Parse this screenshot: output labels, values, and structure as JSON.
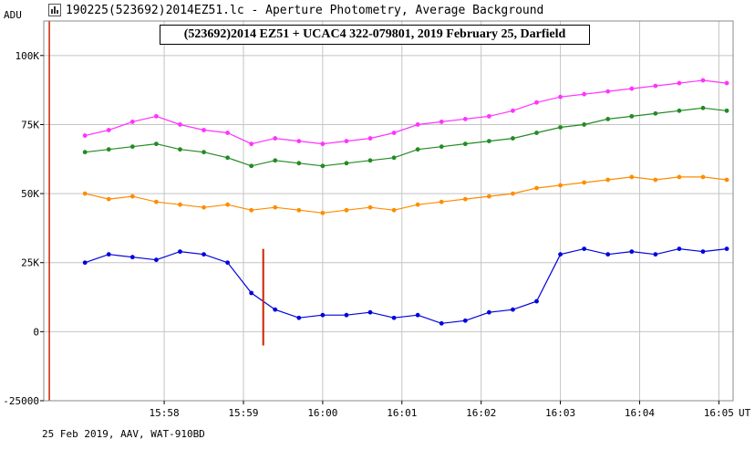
{
  "window": {
    "title": "190225(523692)2014EZ51.lc - Aperture Photometry, Average Background"
  },
  "footer": {
    "caption": "25 Feb 2019, AAV, WAT-910BD"
  },
  "colors": {
    "target": "#0000dd",
    "comparison": "#ff8c00",
    "tracking": "#228b22",
    "reference": "#ff33ff",
    "event_marker": "#cc2200",
    "grid": "#c4c4c4"
  },
  "chart_data": {
    "type": "line",
    "title": "(523692)2014 EZ51 + UCAC4 322-079801, 2019 February 25, Darfield",
    "ylabel": "ADU",
    "xlabel_unit": "UT",
    "ylim": [
      -25000,
      112500
    ],
    "yticks": [
      {
        "value": -25000,
        "label": "-25000"
      },
      {
        "value": 0,
        "label": "0"
      },
      {
        "value": 25000,
        "label": "25K"
      },
      {
        "value": 50000,
        "label": "50K"
      },
      {
        "value": 75000,
        "label": "75K"
      },
      {
        "value": 100000,
        "label": "100K"
      }
    ],
    "xlim_minutes_after_1557": [
      -0.52,
      8.18
    ],
    "xticks": [
      "15:58",
      "15:59",
      "16:00",
      "16:01",
      "16:02",
      "16:03",
      "16:04",
      "16:05"
    ],
    "grid": true,
    "series": [
      {
        "key": "target",
        "x": [
          0.0,
          0.3,
          0.6,
          0.9,
          1.2,
          1.5,
          1.8,
          2.1,
          2.4,
          2.7,
          3.0,
          3.3,
          3.6,
          3.9,
          4.2,
          4.5,
          4.8,
          5.1,
          5.4,
          5.7,
          6.0,
          6.3,
          6.6,
          6.9,
          7.2,
          7.5,
          7.8,
          8.1
        ],
        "y": [
          25000,
          28000,
          27000,
          26000,
          29000,
          28000,
          25000,
          14000,
          8000,
          5000,
          6000,
          6000,
          7000,
          5000,
          6000,
          3000,
          4000,
          7000,
          8000,
          11000,
          28000,
          30000,
          28000,
          29000,
          28000,
          30000,
          29000,
          30000
        ]
      },
      {
        "key": "comparison",
        "x": [
          0.0,
          0.3,
          0.6,
          0.9,
          1.2,
          1.5,
          1.8,
          2.1,
          2.4,
          2.7,
          3.0,
          3.3,
          3.6,
          3.9,
          4.2,
          4.5,
          4.8,
          5.1,
          5.4,
          5.7,
          6.0,
          6.3,
          6.6,
          6.9,
          7.2,
          7.5,
          7.8,
          8.1
        ],
        "y": [
          50000,
          48000,
          49000,
          47000,
          46000,
          45000,
          46000,
          44000,
          45000,
          44000,
          43000,
          44000,
          45000,
          44000,
          46000,
          47000,
          48000,
          49000,
          50000,
          52000,
          53000,
          54000,
          55000,
          56000,
          55000,
          56000,
          56000,
          55000
        ]
      },
      {
        "key": "tracking",
        "x": [
          0.0,
          0.3,
          0.6,
          0.9,
          1.2,
          1.5,
          1.8,
          2.1,
          2.4,
          2.7,
          3.0,
          3.3,
          3.6,
          3.9,
          4.2,
          4.5,
          4.8,
          5.1,
          5.4,
          5.7,
          6.0,
          6.3,
          6.6,
          6.9,
          7.2,
          7.5,
          7.8,
          8.1
        ],
        "y": [
          65000,
          66000,
          67000,
          68000,
          66000,
          65000,
          63000,
          60000,
          62000,
          61000,
          60000,
          61000,
          62000,
          63000,
          66000,
          67000,
          68000,
          69000,
          70000,
          72000,
          74000,
          75000,
          77000,
          78000,
          79000,
          80000,
          81000,
          80000
        ]
      },
      {
        "key": "reference",
        "x": [
          0.0,
          0.3,
          0.6,
          0.9,
          1.2,
          1.5,
          1.8,
          2.1,
          2.4,
          2.7,
          3.0,
          3.3,
          3.6,
          3.9,
          4.2,
          4.5,
          4.8,
          5.1,
          5.4,
          5.7,
          6.0,
          6.3,
          6.6,
          6.9,
          7.2,
          7.5,
          7.8,
          8.1
        ],
        "y": [
          71000,
          73000,
          76000,
          78000,
          75000,
          73000,
          72000,
          68000,
          70000,
          69000,
          68000,
          69000,
          70000,
          72000,
          75000,
          76000,
          77000,
          78000,
          80000,
          83000,
          85000,
          86000,
          87000,
          88000,
          89000,
          90000,
          91000,
          90000
        ]
      }
    ],
    "event_marker_minute": 2.25,
    "start_marker_minute": -0.45
  }
}
